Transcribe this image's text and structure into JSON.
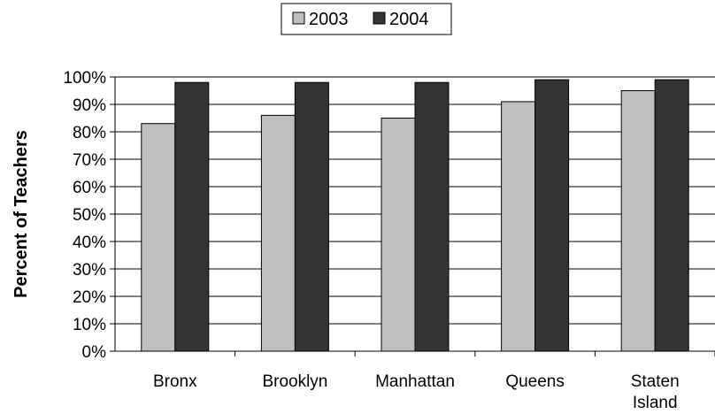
{
  "chart_data": {
    "type": "bar",
    "title": "",
    "xlabel": "",
    "ylabel": "Percent of Teachers",
    "categories": [
      [
        "Bronx"
      ],
      [
        "Brooklyn"
      ],
      [
        "Manhattan"
      ],
      [
        "Queens"
      ],
      [
        "Staten",
        "Island"
      ]
    ],
    "series": [
      {
        "name": "2003",
        "color": "#c0c0c0",
        "values": [
          83,
          86,
          85,
          91,
          95
        ]
      },
      {
        "name": "2004",
        "color": "#333333",
        "values": [
          98,
          98,
          98,
          99,
          99
        ]
      }
    ],
    "ylim": [
      0,
      100
    ],
    "yticks": [
      0,
      10,
      20,
      30,
      40,
      50,
      60,
      70,
      80,
      90,
      100
    ],
    "ytick_labels": [
      "0%",
      "10%",
      "20%",
      "30%",
      "40%",
      "50%",
      "60%",
      "70%",
      "80%",
      "90%",
      "100%"
    ],
    "grid": true,
    "legend_position": "top-center"
  }
}
